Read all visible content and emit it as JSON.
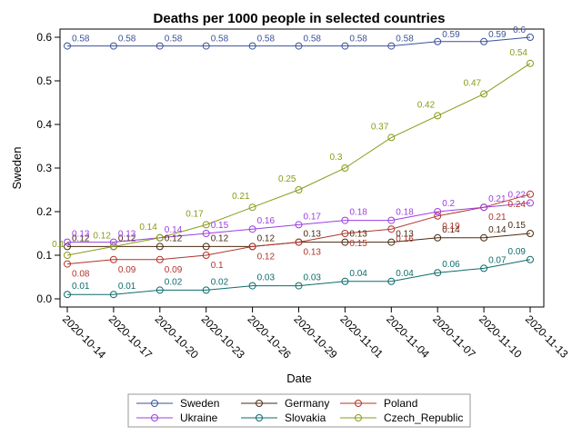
{
  "chart_data": {
    "type": "line",
    "title": "Deaths per 1000 people in selected countries",
    "xlabel": "Date",
    "ylabel": "Sweden",
    "ylim": [
      0,
      0.6
    ],
    "yticks": [
      "0.0",
      "0.1",
      "0.2",
      "0.3",
      "0.4",
      "0.5",
      "0.6"
    ],
    "categories": [
      "2020-10-14",
      "2020-10-17",
      "2020-10-20",
      "2020-10-23",
      "2020-10-26",
      "2020-10-29",
      "2020-11-01",
      "2020-11-04",
      "2020-11-07",
      "2020-11-10",
      "2020-11-13"
    ],
    "legend_position": "bottom",
    "series": [
      {
        "name": "Sweden",
        "color": "#3a5199",
        "values": [
          0.58,
          0.58,
          0.58,
          0.58,
          0.58,
          0.58,
          0.58,
          0.58,
          0.59,
          0.59,
          0.6
        ]
      },
      {
        "name": "Germany",
        "color": "#4a2a10",
        "values": [
          0.12,
          0.12,
          0.12,
          0.12,
          0.12,
          0.13,
          0.13,
          0.13,
          0.14,
          0.14,
          0.15
        ]
      },
      {
        "name": "Poland",
        "color": "#b0342b",
        "values": [
          0.08,
          0.09,
          0.09,
          0.1,
          0.12,
          0.13,
          0.15,
          0.16,
          0.19,
          0.21,
          0.24
        ]
      },
      {
        "name": "Ukraine",
        "color": "#9b3fe0",
        "values": [
          0.13,
          0.13,
          0.14,
          0.15,
          0.16,
          0.17,
          0.18,
          0.18,
          0.2,
          0.21,
          0.22
        ]
      },
      {
        "name": "Slovakia",
        "color": "#0d6b6b",
        "values": [
          0.01,
          0.01,
          0.02,
          0.02,
          0.03,
          0.03,
          0.04,
          0.04,
          0.06,
          0.07,
          0.09
        ]
      },
      {
        "name": "Czech_Republic",
        "color": "#8a9a1a",
        "values": [
          0.1,
          0.12,
          0.14,
          0.17,
          0.21,
          0.25,
          0.3,
          0.37,
          0.42,
          0.47,
          0.54
        ]
      }
    ]
  }
}
